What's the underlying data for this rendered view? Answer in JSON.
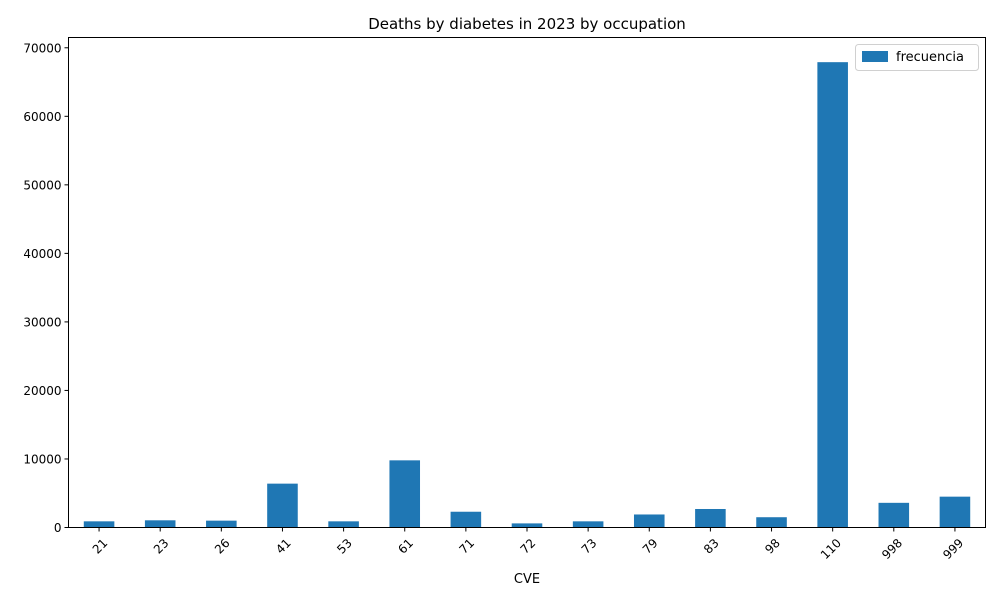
{
  "chart_data": {
    "type": "bar",
    "title": "Deaths by diabetes in 2023 by occupation",
    "xlabel": "CVE",
    "ylabel": "",
    "categories": [
      "21",
      "23",
      "26",
      "41",
      "53",
      "61",
      "71",
      "72",
      "73",
      "79",
      "83",
      "98",
      "110",
      "998",
      "999"
    ],
    "series": [
      {
        "name": "frecuencia",
        "color": "#1f77b4",
        "values": [
          900,
          1050,
          1000,
          6400,
          900,
          9800,
          2300,
          600,
          900,
          1900,
          2700,
          1500,
          67900,
          3600,
          4500
        ]
      }
    ],
    "ylim": [
      0,
      71500
    ],
    "yticks": [
      0,
      10000,
      20000,
      30000,
      40000,
      50000,
      60000,
      70000
    ],
    "grid": false,
    "legend_position": "top-right"
  }
}
